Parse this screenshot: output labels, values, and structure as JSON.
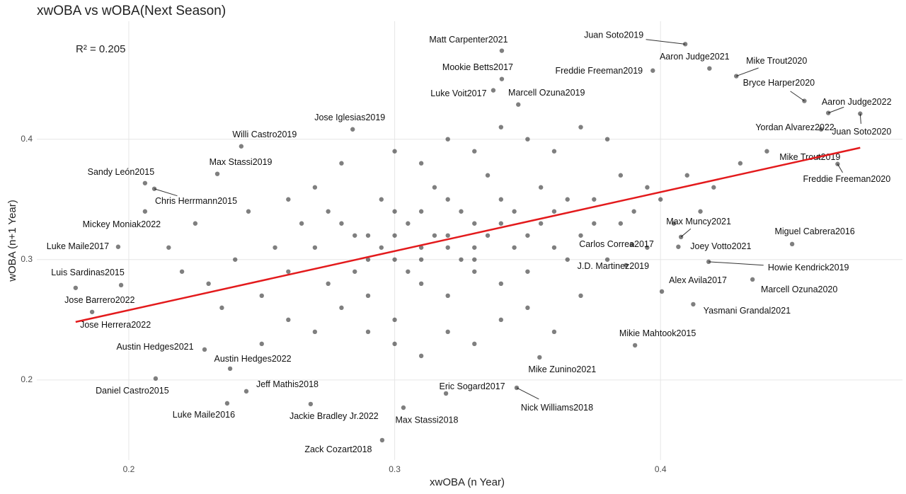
{
  "chart_data": {
    "type": "scatter",
    "title": "xwOBA vs wOBA(Next Season)",
    "x_label": "xwOBA (n Year)",
    "y_label": "wOBA (n+1 Year)",
    "annotation": "R² = 0.205",
    "xlim": [
      0.1654,
      0.491
    ],
    "ylim": [
      0.1335,
      0.498
    ],
    "xticks": [
      0.2,
      0.3,
      0.4
    ],
    "yticks": [
      0.2,
      0.3,
      0.4
    ],
    "grid": true,
    "series": [
      {
        "color": "#000000",
        "x": [
          0.27,
          0.28,
          0.29,
          0.3,
          0.31,
          0.32,
          0.33,
          0.34,
          0.35,
          0.36,
          0.26,
          0.275,
          0.285,
          0.295,
          0.305,
          0.315,
          0.325,
          0.335,
          0.345,
          0.355,
          0.365,
          0.375,
          0.385,
          0.395,
          0.25,
          0.255,
          0.265,
          0.28,
          0.29,
          0.3,
          0.31,
          0.32,
          0.33,
          0.34,
          0.35,
          0.36,
          0.37,
          0.38,
          0.39,
          0.4,
          0.41,
          0.42,
          0.43,
          0.44,
          0.24,
          0.235,
          0.245,
          0.27,
          0.28,
          0.3,
          0.31,
          0.32,
          0.33,
          0.34,
          0.35,
          0.36,
          0.37,
          0.38,
          0.29,
          0.3,
          0.31,
          0.32,
          0.33,
          0.34,
          0.35,
          0.36,
          0.37,
          0.27,
          0.26,
          0.25,
          0.22,
          0.215,
          0.23,
          0.225,
          0.26,
          0.275,
          0.285,
          0.295,
          0.305,
          0.315,
          0.325,
          0.335,
          0.345,
          0.355,
          0.365,
          0.375,
          0.385,
          0.395,
          0.405,
          0.415,
          0.3,
          0.31,
          0.32,
          0.33,
          0.3,
          0.31,
          0.32,
          0.33,
          0.34,
          0.29
        ],
        "y": [
          0.31,
          0.33,
          0.3,
          0.32,
          0.34,
          0.31,
          0.33,
          0.35,
          0.32,
          0.34,
          0.29,
          0.28,
          0.32,
          0.35,
          0.29,
          0.36,
          0.3,
          0.37,
          0.31,
          0.36,
          0.3,
          0.35,
          0.33,
          0.36,
          0.27,
          0.31,
          0.33,
          0.26,
          0.27,
          0.25,
          0.28,
          0.27,
          0.29,
          0.28,
          0.29,
          0.31,
          0.32,
          0.3,
          0.34,
          0.35,
          0.37,
          0.36,
          0.38,
          0.39,
          0.3,
          0.26,
          0.34,
          0.36,
          0.38,
          0.39,
          0.38,
          0.4,
          0.39,
          0.41,
          0.4,
          0.39,
          0.41,
          0.4,
          0.24,
          0.23,
          0.22,
          0.24,
          0.23,
          0.25,
          0.26,
          0.24,
          0.27,
          0.24,
          0.25,
          0.23,
          0.29,
          0.31,
          0.28,
          0.33,
          0.35,
          0.34,
          0.29,
          0.31,
          0.33,
          0.32,
          0.34,
          0.32,
          0.34,
          0.33,
          0.35,
          0.33,
          0.37,
          0.31,
          0.33,
          0.34,
          0.3,
          0.31,
          0.32,
          0.31,
          0.34,
          0.3,
          0.35,
          0.3,
          0.33,
          0.32
        ]
      }
    ],
    "labeled_points": [
      {
        "label": "Matt Carpenter2021",
        "x": 0.3403,
        "y": 0.4735
      },
      {
        "label": "Juan Soto2019",
        "x": 0.4093,
        "y": 0.479
      },
      {
        "label": "Aaron Judge2021",
        "x": 0.4184,
        "y": 0.4588
      },
      {
        "label": "Mike Trout2020",
        "x": 0.4285,
        "y": 0.4524
      },
      {
        "label": "Mookie Betts2017",
        "x": 0.3403,
        "y": 0.45
      },
      {
        "label": "Freddie Freeman2019",
        "x": 0.3971,
        "y": 0.457
      },
      {
        "label": "Bryce Harper2020",
        "x": 0.4541,
        "y": 0.4318
      },
      {
        "label": "Luke Voit2017",
        "x": 0.3371,
        "y": 0.4406
      },
      {
        "label": "Marcell Ozuna2019",
        "x": 0.3465,
        "y": 0.4288
      },
      {
        "label": "Aaron Judge2022",
        "x": 0.4631,
        "y": 0.4218
      },
      {
        "label": "Juan Soto2020",
        "x": 0.4751,
        "y": 0.4212
      },
      {
        "label": "Jose Iglesias2019",
        "x": 0.2842,
        "y": 0.4082
      },
      {
        "label": "Yordan Alvarez2022",
        "x": 0.4604,
        "y": 0.4082
      },
      {
        "label": "Willi Castro2019",
        "x": 0.2423,
        "y": 0.3941
      },
      {
        "label": "Mike Trout2019",
        "x": 0.4594,
        "y": 0.3853
      },
      {
        "label": "Freddie Freeman2020",
        "x": 0.4666,
        "y": 0.3794
      },
      {
        "label": "Max Stassi2019",
        "x": 0.2333,
        "y": 0.3712
      },
      {
        "label": "Sandy León2015",
        "x": 0.2061,
        "y": 0.3635
      },
      {
        "label": "Chris Herrmann2015",
        "x": 0.2096,
        "y": 0.3588
      },
      {
        "label": "Mickey Moniak2022",
        "x": 0.2061,
        "y": 0.34
      },
      {
        "label": "Max Muncy2021",
        "x": 0.4077,
        "y": 0.3188
      },
      {
        "label": "Miguel Cabrera2016",
        "x": 0.4495,
        "y": 0.3129
      },
      {
        "label": "Luke Maile2017",
        "x": 0.196,
        "y": 0.3106
      },
      {
        "label": "Carlos Correa2017",
        "x": 0.3893,
        "y": 0.3124
      },
      {
        "label": "Joey Votto2021",
        "x": 0.4067,
        "y": 0.3106
      },
      {
        "label": "J.D. Martinez2019",
        "x": 0.387,
        "y": 0.2953
      },
      {
        "label": "Howie Kendrick2019",
        "x": 0.4181,
        "y": 0.2982
      },
      {
        "label": "Luis Sardinas2015",
        "x": 0.1971,
        "y": 0.2788
      },
      {
        "label": "Alex Avila2017",
        "x": 0.4005,
        "y": 0.2735
      },
      {
        "label": "Marcell Ozuna2020",
        "x": 0.4346,
        "y": 0.2835
      },
      {
        "label": "Jose Barrero2022",
        "x": 0.18,
        "y": 0.2765
      },
      {
        "label": "Yasmani Grandal2021",
        "x": 0.4123,
        "y": 0.2629
      },
      {
        "label": "Jose Herrera2022",
        "x": 0.1862,
        "y": 0.2565
      },
      {
        "label": "Mikie Mahtook2015",
        "x": 0.3904,
        "y": 0.2288
      },
      {
        "label": "Austin Hedges2021",
        "x": 0.2285,
        "y": 0.2253
      },
      {
        "label": "Austin Hedges2022",
        "x": 0.2381,
        "y": 0.2094
      },
      {
        "label": "Mike Zunino2021",
        "x": 0.3545,
        "y": 0.2188
      },
      {
        "label": "Daniel Castro2015",
        "x": 0.2101,
        "y": 0.2012
      },
      {
        "label": "Jeff Mathis2018",
        "x": 0.2442,
        "y": 0.1906
      },
      {
        "label": "Eric Sogard2017",
        "x": 0.3193,
        "y": 0.1888
      },
      {
        "label": "Nick Williams2018",
        "x": 0.3459,
        "y": 0.1935
      },
      {
        "label": "Luke Maile2016",
        "x": 0.237,
        "y": 0.1806
      },
      {
        "label": "Jackie Bradley Jr.2022",
        "x": 0.2684,
        "y": 0.18
      },
      {
        "label": "Max Stassi2018",
        "x": 0.3033,
        "y": 0.177
      },
      {
        "label": "Zack Cozart2018",
        "x": 0.2953,
        "y": 0.15
      }
    ],
    "trend": {
      "color": "#e31a1c",
      "x": [
        0.18,
        0.4751
      ],
      "y": [
        0.2482,
        0.3929
      ]
    }
  }
}
